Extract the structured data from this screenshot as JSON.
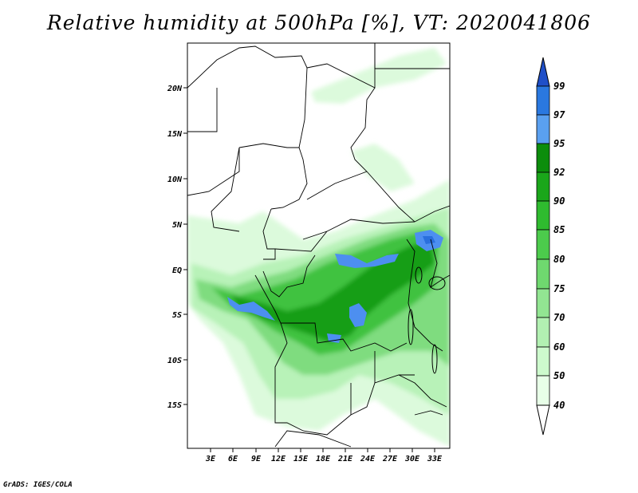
{
  "title": "Relative humidity at 500hPa [%], VT: 2020041806",
  "credit": "GrADS: IGES/COLA",
  "chart_data": {
    "type": "heatmap",
    "title": "Relative humidity at 500hPa [%], VT: 2020041806",
    "variable": "Relative humidity at 500hPa",
    "units": "%",
    "valid_time": "2020041806",
    "lon_range": [
      0,
      35
    ],
    "lat_range": [
      -20,
      25
    ],
    "x_ticks": [
      "3E",
      "6E",
      "9E",
      "12E",
      "15E",
      "18E",
      "21E",
      "24E",
      "27E",
      "30E",
      "33E"
    ],
    "y_ticks": [
      "20N",
      "15N",
      "10N",
      "5N",
      "EQ",
      "5S",
      "10S",
      "15S"
    ],
    "colorbar": {
      "levels": [
        "40",
        "50",
        "60",
        "70",
        "75",
        "80",
        "85",
        "90",
        "92",
        "95",
        "97",
        "99"
      ],
      "colors": [
        "#ffffff",
        "#e8ffe8",
        "#cdfacd",
        "#b2f0b2",
        "#92e592",
        "#6fd86f",
        "#4ccb4c",
        "#2fbb2f",
        "#1aa61a",
        "#0c8d0c",
        "#5aa0f0",
        "#2a78e0",
        "#1f4fc8"
      ]
    }
  }
}
